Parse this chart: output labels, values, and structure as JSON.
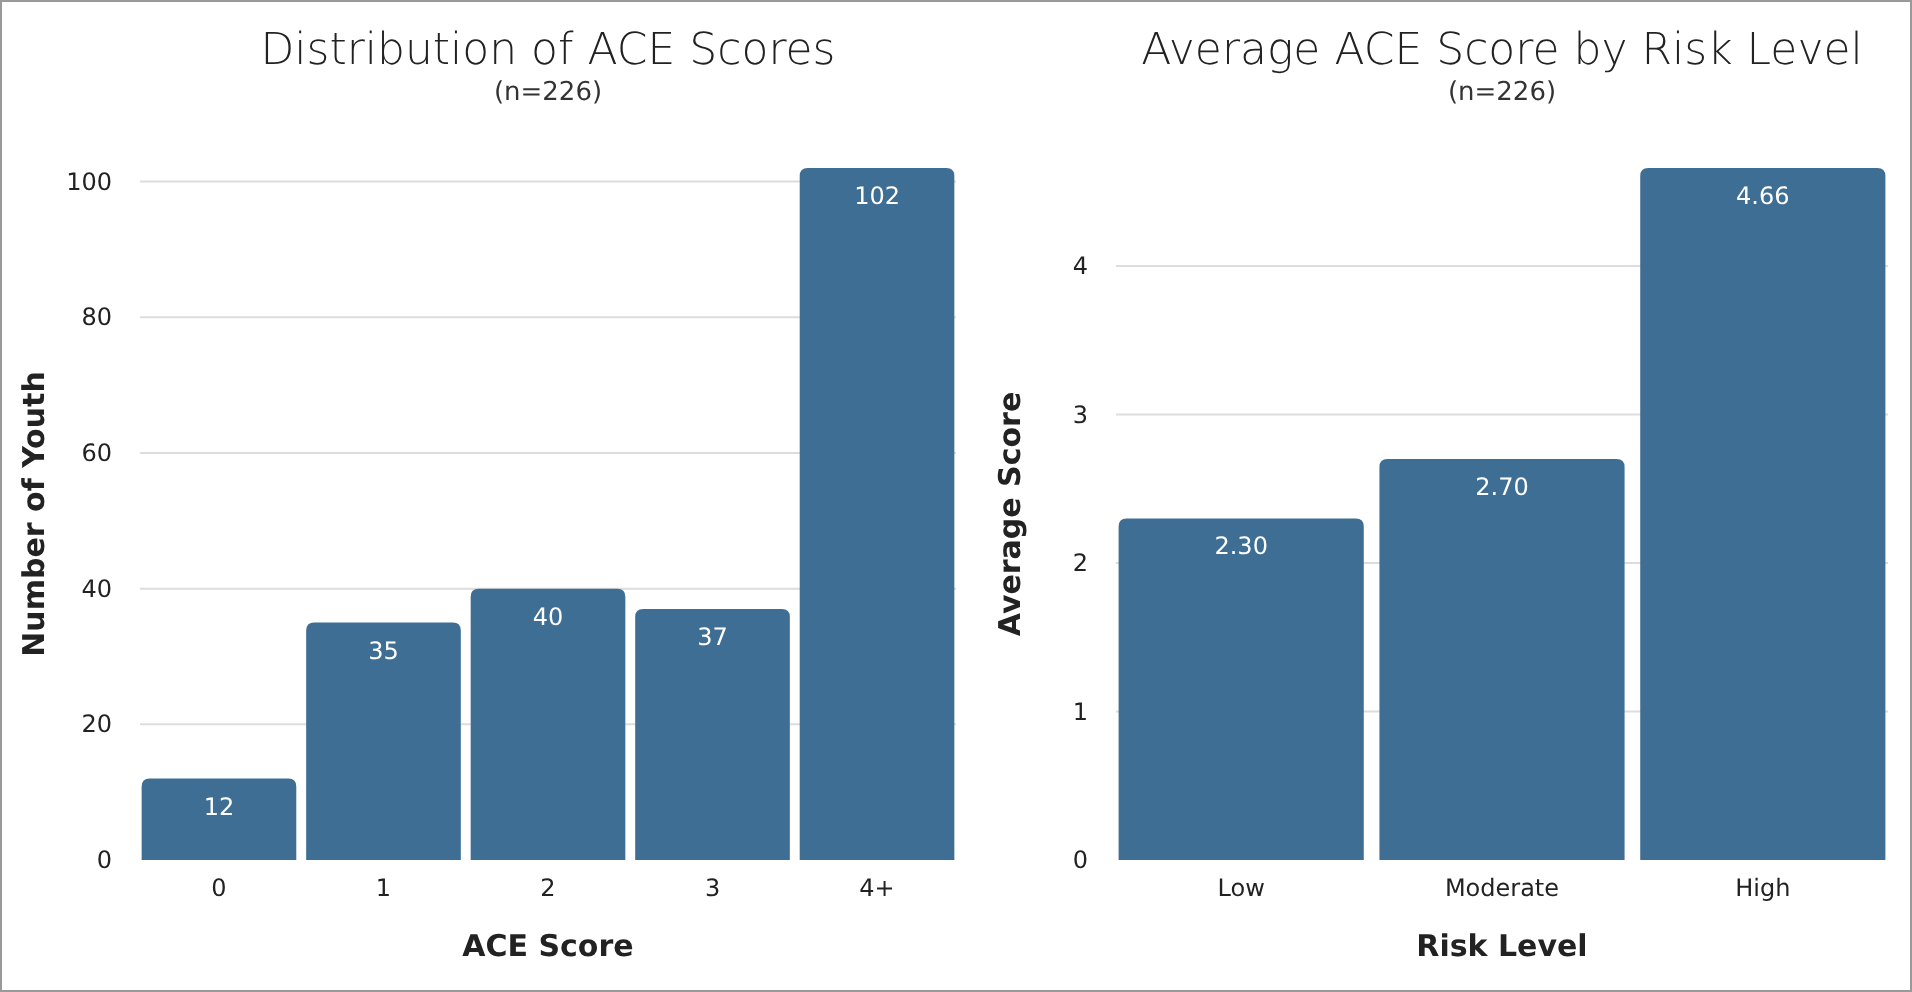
{
  "chart_data": [
    {
      "type": "bar",
      "title": "Distribution of ACE Scores",
      "subtitle": "(n=226)",
      "xlabel": "ACE Score",
      "ylabel": "Number of Youth",
      "categories": [
        "0",
        "1",
        "2",
        "3",
        "4+"
      ],
      "values": [
        12,
        35,
        40,
        37,
        102
      ],
      "color": "#3f6e94",
      "ylim": [
        0,
        102
      ],
      "yticks": [
        0,
        20,
        40,
        60,
        80,
        100
      ],
      "grid": "y",
      "data_labels": true
    },
    {
      "type": "bar",
      "title": "Average ACE Score by Risk Level",
      "subtitle": "(n=226)",
      "xlabel": "Risk Level",
      "ylabel": "Average Score",
      "categories": [
        "Low",
        "Moderate",
        "High"
      ],
      "values": [
        2.3,
        2.7,
        4.66
      ],
      "value_labels": [
        "2.30",
        "2.70",
        "4.66"
      ],
      "color": "#3f6e94",
      "ylim": [
        0,
        4.66
      ],
      "yticks": [
        0,
        1,
        2,
        3,
        4
      ],
      "grid": "y"
    }
  ]
}
